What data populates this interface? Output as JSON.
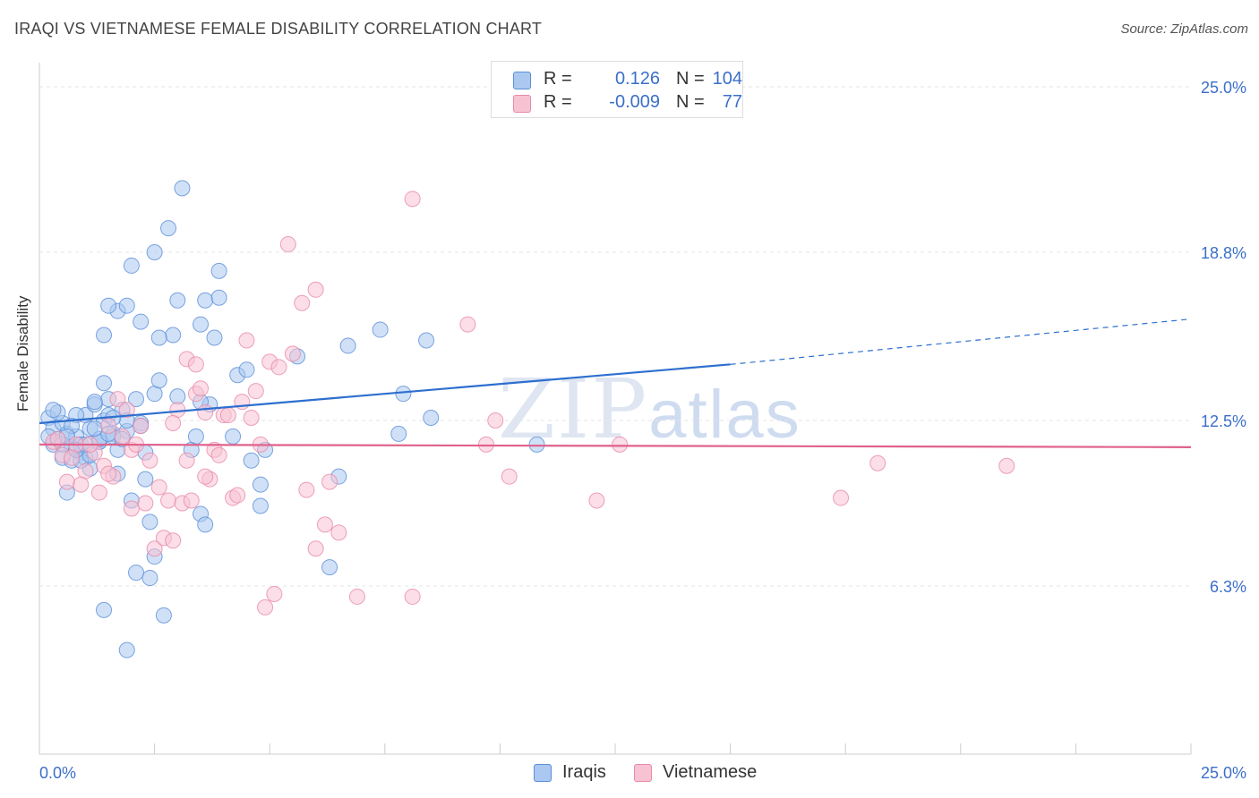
{
  "title": "IRAQI VS VIETNAMESE FEMALE DISABILITY CORRELATION CHART",
  "source": "Source: ZipAtlas.com",
  "watermark": {
    "zip": "ZIP",
    "atlas": "atlas"
  },
  "legend": {
    "r_label": "R =",
    "n_label": "N =",
    "rows": [
      {
        "r": "0.126",
        "n": "104"
      },
      {
        "r": "-0.009",
        "n": "77"
      }
    ]
  },
  "colors": {
    "iraqis_fill": "#aac8f0",
    "iraqis_stroke": "#5b8fd8",
    "iraqis_line": "#2d6fcf",
    "vietnamese_fill": "#f7c3d3",
    "vietnamese_stroke": "#e88aa9",
    "vietnamese_line": "#e0628c",
    "axis_label": "#3b6fc9"
  },
  "chart_data": {
    "type": "scatter",
    "title": "IRAQI VS VIETNAMESE FEMALE DISABILITY CORRELATION CHART",
    "xlabel": "",
    "ylabel": "Female Disability",
    "xlim": [
      0,
      25
    ],
    "ylim": [
      0,
      25
    ],
    "x_tick_labels": [
      "0.0%",
      "25.0%"
    ],
    "y_ticks": [
      6.3,
      12.5,
      18.8,
      25.0
    ],
    "y_tick_labels": [
      "6.3%",
      "12.5%",
      "18.8%",
      "25.0%"
    ],
    "grid": true,
    "series": [
      {
        "name": "Iraqis",
        "r": 0.126,
        "n": 104,
        "trend": {
          "x0": 0,
          "y0": 12.4,
          "x1": 15,
          "y1": 14.6,
          "dashed_to_x": 25,
          "dashed_to_y": 16.3
        },
        "points": [
          [
            0.2,
            12.6
          ],
          [
            0.3,
            12.2
          ],
          [
            0.4,
            11.8
          ],
          [
            0.5,
            12.4
          ],
          [
            0.6,
            12.0
          ],
          [
            0.7,
            11.5
          ],
          [
            0.8,
            11.9
          ],
          [
            0.9,
            11.3
          ],
          [
            1.0,
            12.7
          ],
          [
            1.1,
            12.2
          ],
          [
            1.2,
            13.1
          ],
          [
            1.3,
            11.7
          ],
          [
            1.4,
            12.5
          ],
          [
            1.5,
            13.3
          ],
          [
            1.6,
            12.0
          ],
          [
            1.7,
            11.4
          ],
          [
            0.3,
            11.6
          ],
          [
            0.4,
            12.8
          ],
          [
            0.5,
            11.1
          ],
          [
            0.6,
            9.8
          ],
          [
            0.7,
            11.0
          ],
          [
            0.8,
            12.7
          ],
          [
            0.9,
            11.6
          ],
          [
            1.0,
            11.1
          ],
          [
            1.1,
            10.7
          ],
          [
            1.2,
            13.2
          ],
          [
            1.3,
            11.7
          ],
          [
            1.4,
            13.9
          ],
          [
            1.5,
            12.7
          ],
          [
            1.6,
            11.9
          ],
          [
            1.7,
            10.5
          ],
          [
            1.8,
            12.9
          ],
          [
            1.9,
            12.1
          ],
          [
            2.0,
            9.5
          ],
          [
            2.1,
            13.3
          ],
          [
            2.2,
            12.4
          ],
          [
            2.3,
            11.3
          ],
          [
            2.4,
            8.7
          ],
          [
            2.5,
            13.5
          ],
          [
            2.6,
            14.0
          ],
          [
            0.2,
            11.9
          ],
          [
            0.3,
            12.9
          ],
          [
            0.5,
            11.6
          ],
          [
            0.7,
            12.3
          ],
          [
            0.9,
            11.0
          ],
          [
            1.1,
            11.2
          ],
          [
            1.3,
            11.8
          ],
          [
            1.5,
            12.0
          ],
          [
            1.4,
            15.7
          ],
          [
            1.7,
            16.6
          ],
          [
            1.9,
            16.8
          ],
          [
            2.2,
            16.2
          ],
          [
            2.5,
            18.8
          ],
          [
            2.8,
            19.7
          ],
          [
            3.1,
            21.2
          ],
          [
            2.0,
            18.3
          ],
          [
            3.0,
            17.0
          ],
          [
            3.6,
            17.0
          ],
          [
            3.9,
            18.1
          ],
          [
            3.5,
            16.1
          ],
          [
            2.9,
            15.7
          ],
          [
            3.0,
            13.4
          ],
          [
            3.3,
            11.4
          ],
          [
            3.5,
            9.0
          ],
          [
            3.6,
            8.6
          ],
          [
            4.3,
            14.2
          ],
          [
            4.5,
            14.4
          ],
          [
            3.7,
            13.1
          ],
          [
            3.5,
            13.2
          ],
          [
            4.6,
            11.0
          ],
          [
            4.9,
            11.4
          ],
          [
            4.8,
            9.3
          ],
          [
            5.6,
            14.9
          ],
          [
            6.7,
            15.3
          ],
          [
            7.4,
            15.9
          ],
          [
            8.4,
            15.5
          ],
          [
            7.9,
            13.5
          ],
          [
            7.8,
            12.0
          ],
          [
            8.5,
            12.6
          ],
          [
            6.5,
            10.4
          ],
          [
            6.3,
            7.0
          ],
          [
            2.3,
            10.3
          ],
          [
            2.5,
            7.4
          ],
          [
            2.1,
            6.8
          ],
          [
            2.4,
            6.6
          ],
          [
            1.4,
            5.4
          ],
          [
            2.7,
            5.2
          ],
          [
            1.9,
            3.9
          ],
          [
            4.8,
            10.1
          ],
          [
            3.4,
            11.9
          ],
          [
            4.2,
            11.9
          ],
          [
            2.2,
            12.3
          ],
          [
            1.9,
            12.5
          ],
          [
            1.6,
            12.6
          ],
          [
            1.8,
            11.8
          ],
          [
            10.8,
            11.6
          ],
          [
            3.8,
            15.6
          ],
          [
            1.5,
            16.8
          ],
          [
            3.9,
            17.1
          ],
          [
            2.6,
            15.6
          ],
          [
            0.6,
            11.9
          ],
          [
            0.8,
            11.4
          ],
          [
            1.0,
            11.6
          ],
          [
            1.2,
            12.2
          ]
        ]
      },
      {
        "name": "Vietnamese",
        "r": -0.009,
        "n": 77,
        "trend": {
          "x0": 0,
          "y0": 11.6,
          "x1": 25,
          "y1": 11.5
        },
        "points": [
          [
            0.3,
            11.7
          ],
          [
            0.5,
            11.2
          ],
          [
            0.6,
            10.2
          ],
          [
            0.8,
            11.6
          ],
          [
            1.0,
            10.6
          ],
          [
            1.2,
            11.3
          ],
          [
            1.4,
            10.8
          ],
          [
            1.6,
            10.4
          ],
          [
            1.8,
            11.9
          ],
          [
            2.0,
            11.4
          ],
          [
            2.2,
            12.3
          ],
          [
            2.4,
            11.0
          ],
          [
            2.6,
            10.0
          ],
          [
            2.8,
            9.5
          ],
          [
            3.0,
            12.9
          ],
          [
            3.2,
            11.0
          ],
          [
            3.4,
            13.5
          ],
          [
            3.6,
            12.8
          ],
          [
            3.8,
            11.4
          ],
          [
            4.0,
            12.7
          ],
          [
            4.2,
            9.6
          ],
          [
            4.4,
            13.2
          ],
          [
            4.6,
            12.6
          ],
          [
            4.8,
            11.6
          ],
          [
            0.4,
            11.8
          ],
          [
            0.7,
            11.1
          ],
          [
            0.9,
            10.1
          ],
          [
            1.1,
            11.6
          ],
          [
            1.3,
            9.8
          ],
          [
            1.5,
            12.3
          ],
          [
            1.7,
            13.3
          ],
          [
            1.9,
            12.9
          ],
          [
            2.1,
            11.6
          ],
          [
            2.3,
            9.4
          ],
          [
            2.5,
            7.7
          ],
          [
            2.7,
            8.1
          ],
          [
            2.9,
            8.0
          ],
          [
            3.1,
            9.4
          ],
          [
            3.3,
            9.5
          ],
          [
            3.5,
            13.7
          ],
          [
            3.7,
            10.3
          ],
          [
            3.9,
            11.2
          ],
          [
            4.1,
            12.7
          ],
          [
            4.3,
            9.7
          ],
          [
            4.5,
            15.5
          ],
          [
            4.7,
            13.6
          ],
          [
            5.0,
            14.7
          ],
          [
            5.2,
            14.5
          ],
          [
            5.5,
            15.0
          ],
          [
            5.7,
            16.9
          ],
          [
            6.0,
            17.4
          ],
          [
            5.4,
            19.1
          ],
          [
            8.1,
            20.8
          ],
          [
            9.3,
            16.1
          ],
          [
            3.2,
            14.8
          ],
          [
            2.9,
            12.4
          ],
          [
            3.4,
            14.6
          ],
          [
            6.3,
            10.2
          ],
          [
            5.8,
            9.9
          ],
          [
            6.2,
            8.6
          ],
          [
            6.5,
            8.3
          ],
          [
            6.0,
            7.7
          ],
          [
            6.9,
            5.9
          ],
          [
            8.1,
            5.9
          ],
          [
            5.1,
            6.0
          ],
          [
            4.9,
            5.5
          ],
          [
            9.9,
            12.5
          ],
          [
            9.7,
            11.6
          ],
          [
            10.2,
            10.4
          ],
          [
            12.6,
            11.6
          ],
          [
            12.1,
            9.5
          ],
          [
            17.4,
            9.6
          ],
          [
            18.2,
            10.9
          ],
          [
            21.0,
            10.8
          ],
          [
            1.5,
            10.5
          ],
          [
            2.0,
            9.2
          ],
          [
            3.6,
            10.4
          ]
        ]
      }
    ]
  },
  "bottom_legend": [
    "Iraqis",
    "Vietnamese"
  ]
}
